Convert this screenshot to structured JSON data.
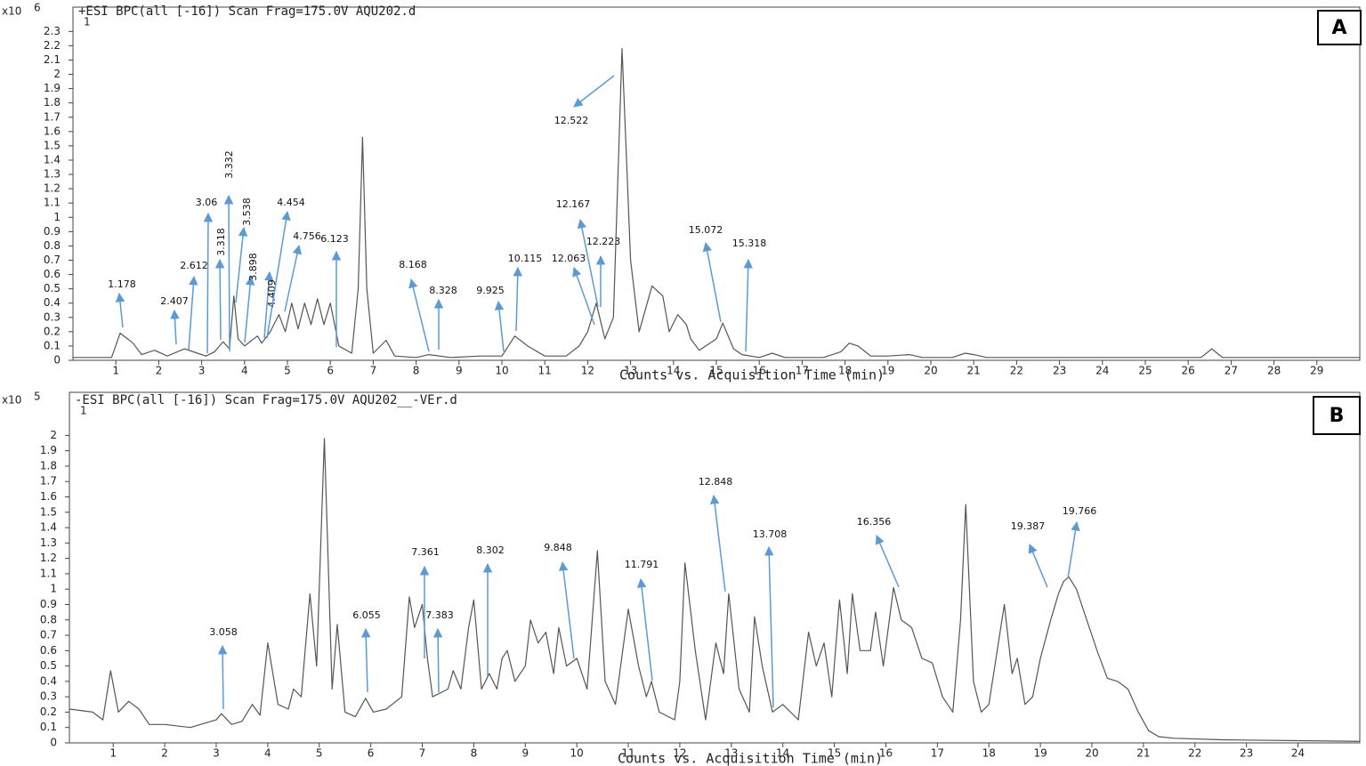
{
  "chart_data": [
    {
      "type": "line",
      "panel": "A",
      "title": "+ESI BPC(all [-16]) Scan Frag=175.0V AQU202.d",
      "subtitle": "1",
      "y_unit": "x10",
      "y_exponent": "6",
      "x_label": "Counts vs. Acquisition Time (min)",
      "color": "#555555",
      "xlim": [
        0,
        30
      ],
      "ylim": [
        0,
        2.47
      ],
      "xticks": [
        1,
        2,
        3,
        4,
        5,
        6,
        7,
        8,
        9,
        10,
        11,
        12,
        13,
        14,
        15,
        16,
        17,
        18,
        19,
        20,
        21,
        22,
        23,
        24,
        25,
        26,
        27,
        28,
        29
      ],
      "yticks": [
        0,
        0.1,
        0.2,
        0.3,
        0.4,
        0.5,
        0.6,
        0.7,
        0.8,
        0.9,
        1,
        1.1,
        1.2,
        1.3,
        1.4,
        1.5,
        1.6,
        1.7,
        1.8,
        1.9,
        2,
        2.1,
        2.2,
        2.3
      ],
      "x": [
        0,
        0.9,
        1.1,
        1.4,
        1.6,
        1.9,
        2.2,
        2.6,
        2.9,
        3.1,
        3.3,
        3.5,
        3.65,
        3.75,
        3.85,
        4.0,
        4.3,
        4.4,
        4.6,
        4.8,
        4.95,
        5.1,
        5.25,
        5.4,
        5.55,
        5.7,
        5.85,
        6.0,
        6.2,
        6.5,
        6.65,
        6.75,
        6.85,
        7.0,
        7.3,
        7.5,
        8.0,
        8.3,
        8.8,
        9.5,
        10.0,
        10.3,
        10.6,
        11.0,
        11.5,
        11.8,
        12.0,
        12.2,
        12.4,
        12.6,
        12.8,
        13.0,
        13.2,
        13.5,
        13.75,
        13.9,
        14.1,
        14.3,
        14.4,
        14.6,
        15.0,
        15.15,
        15.4,
        15.6,
        16.0,
        16.3,
        16.6,
        17.5,
        17.9,
        18.1,
        18.3,
        18.6,
        19.0,
        19.5,
        19.8,
        20.5,
        20.8,
        21.0,
        21.3,
        26.3,
        26.55,
        26.8,
        30.0
      ],
      "values": [
        0.02,
        0.02,
        0.19,
        0.12,
        0.04,
        0.07,
        0.03,
        0.08,
        0.05,
        0.03,
        0.06,
        0.13,
        0.08,
        0.45,
        0.15,
        0.1,
        0.17,
        0.12,
        0.2,
        0.32,
        0.2,
        0.4,
        0.22,
        0.4,
        0.25,
        0.43,
        0.25,
        0.4,
        0.1,
        0.05,
        0.5,
        1.56,
        0.5,
        0.05,
        0.14,
        0.03,
        0.02,
        0.04,
        0.02,
        0.03,
        0.03,
        0.17,
        0.1,
        0.03,
        0.03,
        0.1,
        0.2,
        0.4,
        0.15,
        0.3,
        2.18,
        0.7,
        0.2,
        0.52,
        0.45,
        0.2,
        0.32,
        0.25,
        0.15,
        0.07,
        0.15,
        0.26,
        0.08,
        0.04,
        0.02,
        0.05,
        0.02,
        0.02,
        0.06,
        0.12,
        0.1,
        0.03,
        0.03,
        0.04,
        0.02,
        0.02,
        0.05,
        0.04,
        0.02,
        0.02,
        0.08,
        0.02,
        0.02
      ],
      "annotations": [
        "1.178",
        "2.407",
        "2.612",
        "3.06",
        "3.332",
        "3.318",
        "3.538",
        "3.898",
        "4.409",
        "4.454",
        "4.756",
        "6.123",
        "8.168",
        "8.328",
        "9.925",
        "10.115",
        "12.063",
        "12.167",
        "12.223",
        "12.522",
        "15.072",
        "15.318"
      ]
    },
    {
      "type": "line",
      "panel": "B",
      "title": "-ESI BPC(all [-16]) Scan Frag=175.0V AQU202__-VEr.d",
      "subtitle": "1",
      "y_unit": "x10",
      "y_exponent": "5",
      "x_label": "Counts vs. Acquisition Time (min)",
      "color": "#555555",
      "xlim": [
        0.15,
        25.2
      ],
      "ylim": [
        0,
        2.28
      ],
      "xticks": [
        1,
        2,
        3,
        4,
        5,
        6,
        7,
        8,
        9,
        10,
        11,
        12,
        13,
        14,
        15,
        16,
        17,
        18,
        19,
        20,
        21,
        22,
        23,
        24
      ],
      "yticks": [
        0,
        0.1,
        0.2,
        0.3,
        0.4,
        0.5,
        0.6,
        0.7,
        0.8,
        0.9,
        1,
        1.1,
        1.2,
        1.3,
        1.4,
        1.5,
        1.6,
        1.7,
        1.8,
        1.9,
        2
      ],
      "x": [
        0.15,
        0.6,
        0.8,
        0.95,
        1.1,
        1.3,
        1.5,
        1.7,
        2.0,
        2.5,
        3.0,
        3.1,
        3.3,
        3.5,
        3.7,
        3.85,
        4.0,
        4.2,
        4.4,
        4.5,
        4.65,
        4.82,
        4.95,
        5.1,
        5.25,
        5.35,
        5.5,
        5.7,
        5.9,
        6.05,
        6.3,
        6.6,
        6.75,
        6.85,
        7.0,
        7.1,
        7.2,
        7.5,
        7.6,
        7.75,
        7.9,
        8.0,
        8.15,
        8.3,
        8.45,
        8.55,
        8.65,
        8.8,
        9.0,
        9.1,
        9.25,
        9.4,
        9.55,
        9.65,
        9.8,
        10.0,
        10.2,
        10.4,
        10.55,
        10.75,
        11.0,
        11.2,
        11.35,
        11.45,
        11.6,
        11.9,
        12.0,
        12.1,
        12.3,
        12.5,
        12.7,
        12.85,
        12.95,
        13.15,
        13.35,
        13.45,
        13.6,
        13.8,
        14.0,
        14.3,
        14.5,
        14.65,
        14.8,
        14.95,
        15.1,
        15.25,
        15.35,
        15.5,
        15.7,
        15.8,
        15.95,
        16.15,
        16.3,
        16.5,
        16.7,
        16.9,
        17.1,
        17.3,
        17.45,
        17.55,
        17.7,
        17.85,
        18.0,
        18.3,
        18.45,
        18.55,
        18.7,
        18.85,
        19.0,
        19.2,
        19.35,
        19.45,
        19.55,
        19.7,
        19.9,
        20.1,
        20.3,
        20.5,
        20.7,
        20.9,
        21.1,
        21.3,
        21.6,
        22.5,
        25.2
      ],
      "values": [
        0.22,
        0.2,
        0.15,
        0.47,
        0.2,
        0.27,
        0.22,
        0.12,
        0.12,
        0.1,
        0.15,
        0.19,
        0.12,
        0.14,
        0.25,
        0.18,
        0.65,
        0.25,
        0.22,
        0.35,
        0.3,
        0.97,
        0.5,
        1.98,
        0.35,
        0.77,
        0.2,
        0.17,
        0.29,
        0.2,
        0.22,
        0.3,
        0.95,
        0.75,
        0.9,
        0.55,
        0.3,
        0.35,
        0.47,
        0.35,
        0.75,
        0.93,
        0.35,
        0.45,
        0.35,
        0.55,
        0.6,
        0.4,
        0.5,
        0.8,
        0.65,
        0.72,
        0.45,
        0.75,
        0.5,
        0.55,
        0.35,
        1.25,
        0.4,
        0.25,
        0.87,
        0.5,
        0.3,
        0.4,
        0.2,
        0.15,
        0.4,
        1.17,
        0.6,
        0.15,
        0.65,
        0.45,
        0.97,
        0.35,
        0.2,
        0.82,
        0.5,
        0.2,
        0.25,
        0.15,
        0.72,
        0.5,
        0.65,
        0.3,
        0.93,
        0.45,
        0.97,
        0.6,
        0.6,
        0.85,
        0.5,
        1.01,
        0.8,
        0.75,
        0.55,
        0.52,
        0.3,
        0.2,
        0.8,
        1.55,
        0.4,
        0.2,
        0.25,
        0.9,
        0.45,
        0.55,
        0.25,
        0.3,
        0.55,
        0.8,
        0.97,
        1.05,
        1.08,
        1.0,
        0.8,
        0.6,
        0.42,
        0.4,
        0.35,
        0.2,
        0.08,
        0.04,
        0.03,
        0.02,
        0.01
      ],
      "annotations": [
        "3.058",
        "6.055",
        "7.361",
        "7.383",
        "8.302",
        "9.848",
        "11.791",
        "12.848",
        "13.708",
        "16.356",
        "19.387",
        "19.766"
      ]
    }
  ]
}
